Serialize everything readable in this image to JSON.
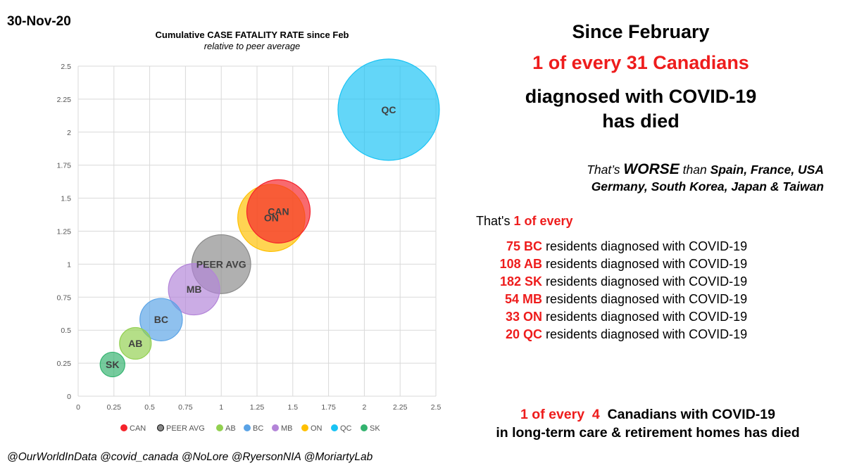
{
  "date": "30-Nov-20",
  "credits": "@OurWorldInData @covid_canada @NoLore @RyersonNIA @MoriartyLab",
  "right": {
    "line1": "Since February",
    "line2": "1 of every 31 Canadians",
    "line3": "diagnosed with COVID-19",
    "line4": "has died",
    "worse_thats": "That’s ",
    "worse_word": "WORSE",
    "worse_than": " than ",
    "worse_countries_1": "Spain, France, USA",
    "worse_countries_2": "Germany, South Korea, Japan & Taiwan",
    "thats_prefix": "That's ",
    "thats_red": "1 of every",
    "residents": [
      {
        "num": "75 BC",
        "text": "residents diagnosed with COVID-19"
      },
      {
        "num": "108 AB",
        "text": "residents diagnosed with COVID-19"
      },
      {
        "num": "182 SK",
        "text": "residents diagnosed with COVID-19"
      },
      {
        "num": "54 MB",
        "text": "residents diagnosed with COVID-19"
      },
      {
        "num": "33 ON",
        "text": "residents diagnosed with COVID-19"
      },
      {
        "num": "20 QC",
        "text": "residents diagnosed with COVID-19"
      }
    ],
    "ltc_red": "1 of every  4",
    "ltc_rest": "Canadians with COVID-19",
    "ltc_line2": "in long-term care & retirement homes has died"
  },
  "chart_data": {
    "type": "scatter",
    "title": "Cumulative CASE FATALITY RATE since Feb",
    "subtitle": "relative to peer average",
    "xlim": [
      0,
      2.5
    ],
    "ylim": [
      0,
      2.5
    ],
    "xticks": [
      "0",
      "0.25",
      "0.5",
      "0.75",
      "1",
      "1.25",
      "1.5",
      "1.75",
      "2",
      "2.25",
      "2.5"
    ],
    "yticks": [
      "0",
      "0.25",
      "0.5",
      "0.75",
      "1",
      "1.25",
      "1.5",
      "1.75",
      "2",
      "2.25",
      "2.5"
    ],
    "grid": true,
    "legend_position": "bottom",
    "series": [
      {
        "name": "CAN",
        "x": 1.4,
        "y": 1.4,
        "size": 1.0,
        "color": "#f5232b"
      },
      {
        "name": "PEER AVG",
        "x": 1.0,
        "y": 1.0,
        "size": 0.93,
        "color": "#8a8a8a"
      },
      {
        "name": "AB",
        "x": 0.4,
        "y": 0.4,
        "size": 0.5,
        "color": "#92d050"
      },
      {
        "name": "BC",
        "x": 0.58,
        "y": 0.58,
        "size": 0.67,
        "color": "#5aa3e6"
      },
      {
        "name": "MB",
        "x": 0.81,
        "y": 0.81,
        "size": 0.81,
        "color": "#b384d8"
      },
      {
        "name": "ON",
        "x": 1.35,
        "y": 1.35,
        "size": 1.06,
        "color": "#ffc000"
      },
      {
        "name": "QC",
        "x": 2.17,
        "y": 2.17,
        "size": 1.6,
        "color": "#19c3f4"
      },
      {
        "name": "SK",
        "x": 0.24,
        "y": 0.24,
        "size": 0.39,
        "color": "#33b36f"
      }
    ]
  }
}
